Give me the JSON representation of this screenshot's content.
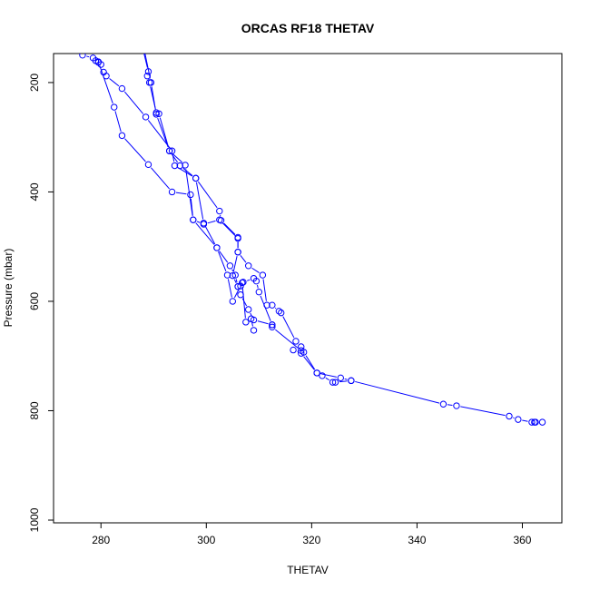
{
  "chart_data": {
    "type": "line",
    "title": "ORCAS RF18 THETAV",
    "xlabel": "THETAV",
    "ylabel": "Pressure (mbar)",
    "xlim": [
      271,
      367.5
    ],
    "ylim": [
      1005,
      147
    ],
    "y_reversed": true,
    "grid": false,
    "xticks": [
      280,
      300,
      320,
      340,
      360
    ],
    "yticks": [
      200,
      400,
      600,
      800,
      1000
    ],
    "series": [
      {
        "color": "#0000ff",
        "marker": "open-circle",
        "points": [
          [
            288,
            140
          ],
          [
            289,
            180
          ],
          [
            288.8,
            188
          ],
          [
            289.2,
            200
          ],
          [
            290.5,
            255
          ],
          [
            291,
            257
          ],
          [
            293,
            325
          ],
          [
            295,
            352
          ],
          [
            298,
            375
          ],
          [
            302.5,
            435
          ],
          [
            302.8,
            452
          ],
          [
            306,
            483
          ],
          [
            306,
            510
          ],
          [
            308,
            535
          ],
          [
            310.7,
            552
          ],
          [
            311.5,
            607
          ],
          [
            312.5,
            607
          ],
          [
            313.8,
            618
          ],
          [
            314.2,
            621
          ],
          [
            317,
            673
          ],
          [
            318,
            683
          ],
          [
            318.5,
            693
          ],
          [
            321,
            731
          ],
          [
            322,
            736
          ],
          [
            324,
            748
          ],
          [
            324.5,
            748
          ],
          [
            327.5,
            745
          ],
          [
            345,
            788
          ],
          [
            347.5,
            791
          ],
          [
            357.5,
            810
          ],
          [
            359.2,
            816
          ],
          [
            361.8,
            821
          ],
          [
            362.3,
            821
          ],
          [
            362.5,
            821
          ],
          [
            363.8,
            821
          ]
        ]
      },
      {
        "color": "#0000ff",
        "marker": "open-circle",
        "points": [
          [
            276.5,
            150
          ],
          [
            278.5,
            155
          ],
          [
            279,
            160
          ],
          [
            279.5,
            163
          ],
          [
            280,
            167
          ],
          [
            280.5,
            181
          ],
          [
            281,
            188
          ],
          [
            284,
            211
          ],
          [
            288.5,
            263
          ],
          [
            293.5,
            325
          ],
          [
            294,
            352
          ],
          [
            298,
            375
          ],
          [
            299.5,
            457
          ],
          [
            302,
            502
          ],
          [
            304.5,
            535
          ],
          [
            305.5,
            552
          ],
          [
            306,
            573
          ],
          [
            306.5,
            588
          ],
          [
            308,
            615
          ],
          [
            309,
            634
          ],
          [
            312.5,
            643
          ],
          [
            312.5,
            647
          ],
          [
            318,
            690
          ]
        ]
      },
      {
        "color": "#0000ff",
        "marker": "open-circle",
        "points": [
          [
            279.5,
            162
          ],
          [
            282.5,
            245
          ],
          [
            284,
            297
          ],
          [
            289,
            350
          ],
          [
            293.5,
            400
          ],
          [
            297,
            405
          ],
          [
            297.5,
            451
          ],
          [
            302,
            502
          ],
          [
            304,
            552
          ],
          [
            305,
            600
          ],
          [
            306.5,
            572
          ],
          [
            307,
            565
          ],
          [
            309,
            558
          ],
          [
            309.5,
            563
          ],
          [
            310,
            583
          ],
          [
            312.5,
            643
          ]
        ]
      },
      {
        "color": "#0000ff",
        "marker": "open-circle",
        "points": [
          [
            288,
            130
          ],
          [
            289.5,
            200
          ],
          [
            289.5,
            200
          ],
          [
            290.5,
            258
          ],
          [
            293,
            325
          ],
          [
            296,
            351
          ],
          [
            297.5,
            451
          ],
          [
            299.5,
            459
          ],
          [
            302.5,
            451
          ],
          [
            306,
            485
          ],
          [
            306,
            510
          ],
          [
            305,
            553
          ],
          [
            306,
            573
          ],
          [
            306.8,
            566
          ],
          [
            307.5,
            638
          ],
          [
            308.5,
            632
          ],
          [
            309,
            653
          ]
        ]
      },
      {
        "color": "#0000ff",
        "marker": "open-circle",
        "points": [
          [
            316.5,
            689
          ],
          [
            318,
            695
          ],
          [
            321,
            731
          ],
          [
            325.5,
            740
          ],
          [
            327.5,
            745
          ]
        ]
      }
    ]
  }
}
